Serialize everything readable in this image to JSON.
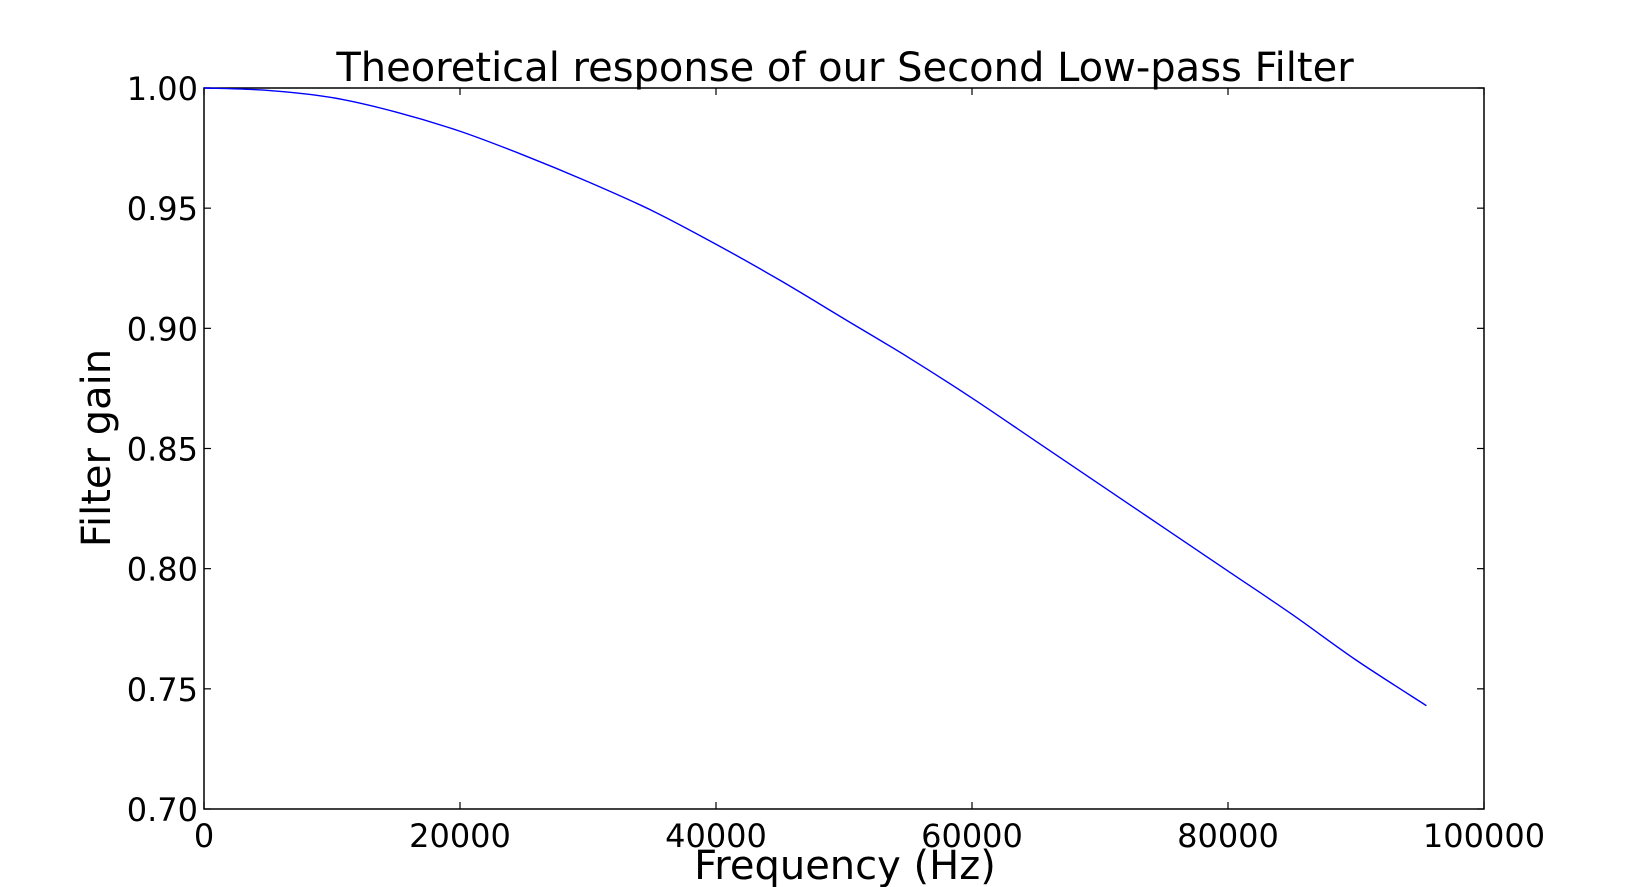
{
  "chart_data": {
    "type": "line",
    "title": "Theoretical response of our Second Low-pass Filter",
    "xlabel": "Frequency (Hz)",
    "ylabel": "Filter gain",
    "xlim": [
      0,
      100000
    ],
    "ylim": [
      0.7,
      1.0
    ],
    "x_ticks": [
      "0",
      "20000",
      "40000",
      "60000",
      "80000",
      "100000"
    ],
    "y_ticks": [
      "0.70",
      "0.75",
      "0.80",
      "0.85",
      "0.90",
      "0.95",
      "1.00"
    ],
    "grid": false,
    "series": [
      {
        "color": "#0000ff",
        "x": [
          0,
          5000,
          10000,
          15000,
          20000,
          25000,
          30000,
          35000,
          40000,
          45000,
          50000,
          55000,
          60000,
          65000,
          70000,
          75000,
          80000,
          85000,
          90000,
          95500
        ],
        "y": [
          1.0,
          0.999,
          0.996,
          0.99,
          0.982,
          0.972,
          0.961,
          0.949,
          0.935,
          0.92,
          0.904,
          0.888,
          0.871,
          0.853,
          0.835,
          0.817,
          0.799,
          0.781,
          0.762,
          0.743
        ]
      }
    ]
  }
}
